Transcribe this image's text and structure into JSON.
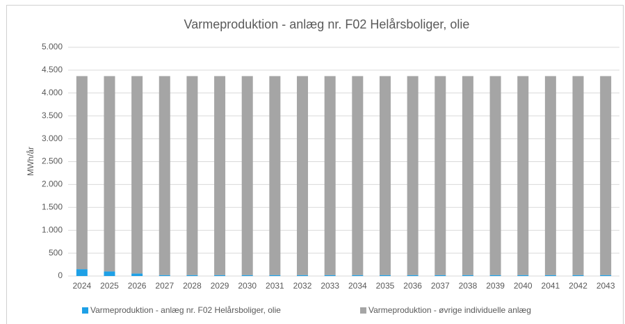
{
  "chart_data": {
    "type": "stacked_bar",
    "title": "Varmeproduktion - anlæg nr. F02 Helårsboliger, olie",
    "y_label": "MWh/år",
    "categories": [
      "2024",
      "2025",
      "2026",
      "2027",
      "2028",
      "2029",
      "2030",
      "2031",
      "2032",
      "2033",
      "2034",
      "2035",
      "2036",
      "2037",
      "2038",
      "2039",
      "2040",
      "2041",
      "2042",
      "2043"
    ],
    "series": [
      {
        "name": "Varmeproduktion - anlæg nr. F02 Helårsboliger, olie",
        "color": "#1ea0e6",
        "values": [
          150,
          100,
          55,
          20,
          20,
          20,
          20,
          20,
          20,
          20,
          20,
          20,
          20,
          20,
          20,
          20,
          20,
          20,
          20,
          20
        ]
      },
      {
        "name": "Varmeproduktion - øvrige individuelle anlæg",
        "color": "#a5a5a5",
        "values": [
          4220,
          4270,
          4315,
          4350,
          4350,
          4350,
          4350,
          4350,
          4350,
          4350,
          4350,
          4350,
          4350,
          4350,
          4350,
          4350,
          4350,
          4350,
          4350,
          4350
        ]
      }
    ],
    "ylim": [
      0,
      5000
    ],
    "yticks": [
      0,
      500,
      {
        "value": 1000,
        "label": "1.000"
      },
      {
        "value": 1500,
        "label": "1.500"
      },
      {
        "value": 2000,
        "label": "2.000"
      },
      {
        "value": 2500,
        "label": "2.500"
      },
      {
        "value": 3000,
        "label": "3.000"
      },
      {
        "value": 3500,
        "label": "3.500"
      },
      {
        "value": 4000,
        "label": "4.000"
      },
      {
        "value": 4500,
        "label": "4.500"
      },
      {
        "value": 5000,
        "label": "5.000"
      }
    ],
    "grid": true,
    "legend": "bottom"
  }
}
